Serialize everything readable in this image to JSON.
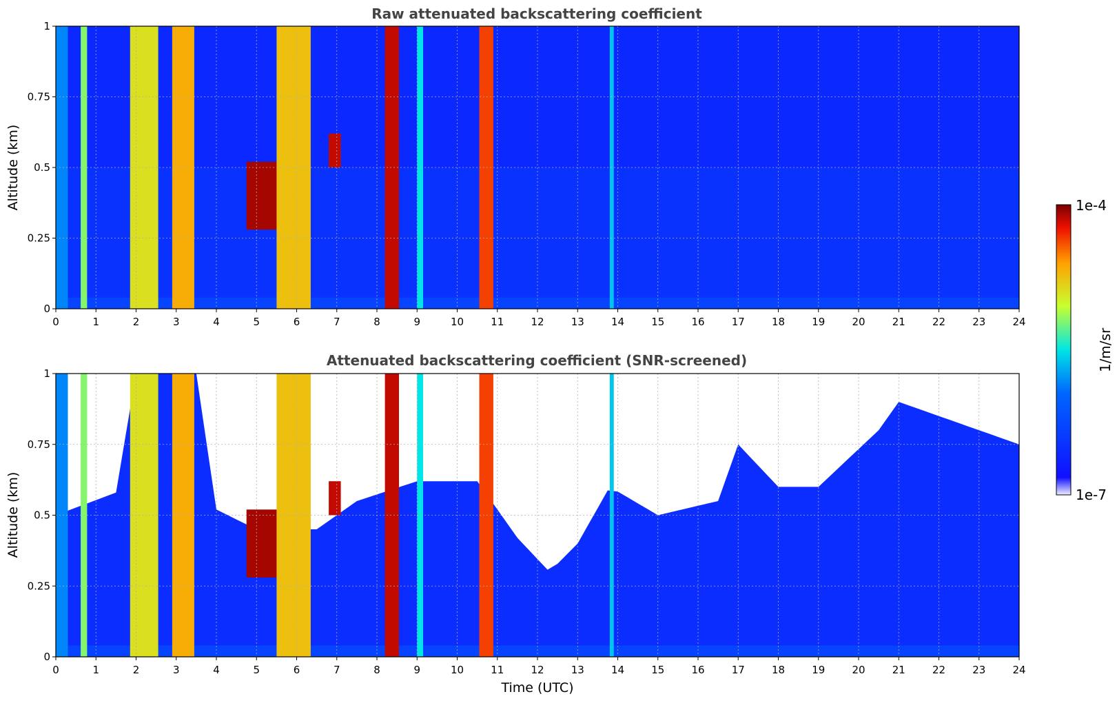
{
  "chart_data": [
    {
      "type": "heatmap",
      "title": "Raw attenuated backscattering coefficient",
      "xlabel": "",
      "ylabel": "Altitude (km)",
      "xlim": [
        0,
        24
      ],
      "ylim": [
        0,
        1
      ],
      "x_ticks": [
        "0",
        "1",
        "2",
        "3",
        "4",
        "5",
        "6",
        "7",
        "8",
        "9",
        "10",
        "11",
        "12",
        "13",
        "14",
        "15",
        "16",
        "17",
        "18",
        "19",
        "20",
        "21",
        "22",
        "23",
        "24"
      ],
      "y_ticks": [
        "0",
        "0.25",
        "0.5",
        "0.75",
        "1"
      ],
      "grid": true,
      "color_scale": "log",
      "features": [
        {
          "x_range": [
            0.0,
            0.3
          ],
          "alt_range": [
            0,
            1
          ],
          "level": 0.35
        },
        {
          "x_range": [
            0.62,
            0.78
          ],
          "alt_range": [
            0,
            1
          ],
          "level": 0.6
        },
        {
          "x_range": [
            1.85,
            2.55
          ],
          "alt_range": [
            0,
            1
          ],
          "level": 0.7
        },
        {
          "x_range": [
            2.9,
            3.45
          ],
          "alt_range": [
            0,
            1
          ],
          "level": 0.78
        },
        {
          "x_range": [
            4.75,
            5.55
          ],
          "alt_range": [
            0.28,
            0.52
          ],
          "level": 0.97
        },
        {
          "x_range": [
            5.5,
            6.35
          ],
          "alt_range": [
            0,
            1
          ],
          "level": 0.75
        },
        {
          "x_range": [
            6.8,
            7.1
          ],
          "alt_range": [
            0.5,
            0.62
          ],
          "level": 0.95
        },
        {
          "x_range": [
            8.2,
            8.55
          ],
          "alt_range": [
            0,
            1
          ],
          "level": 0.95
        },
        {
          "x_range": [
            9.0,
            9.15
          ],
          "alt_range": [
            0,
            1
          ],
          "level": 0.5
        },
        {
          "x_range": [
            10.55,
            10.9
          ],
          "alt_range": [
            0,
            1
          ],
          "level": 0.88
        },
        {
          "x_range": [
            13.8,
            13.9
          ],
          "alt_range": [
            0,
            1
          ],
          "level": 0.45
        }
      ],
      "background_level": 0.12
    },
    {
      "type": "heatmap",
      "title": "Attenuated backscattering coefficient (SNR-screened)",
      "xlabel": "Time (UTC)",
      "ylabel": "Altitude (km)",
      "xlim": [
        0,
        24
      ],
      "ylim": [
        0,
        1
      ],
      "x_ticks": [
        "0",
        "1",
        "2",
        "3",
        "4",
        "5",
        "6",
        "7",
        "8",
        "9",
        "10",
        "11",
        "12",
        "13",
        "14",
        "15",
        "16",
        "17",
        "18",
        "19",
        "20",
        "21",
        "22",
        "23",
        "24"
      ],
      "y_ticks": [
        "0",
        "0.25",
        "0.5",
        "0.75",
        "1"
      ],
      "grid": true,
      "color_scale": "log",
      "screened_top_altitude": [
        [
          0,
          0.5
        ],
        [
          1.5,
          0.58
        ],
        [
          2,
          1
        ],
        [
          3.5,
          1
        ],
        [
          4,
          0.52
        ],
        [
          5,
          0.45
        ],
        [
          6.5,
          0.45
        ],
        [
          7.5,
          0.55
        ],
        [
          9,
          0.62
        ],
        [
          10.5,
          0.62
        ],
        [
          11.5,
          0.42
        ],
        [
          12.3,
          0.3
        ],
        [
          13,
          0.4
        ],
        [
          13.8,
          0.6
        ],
        [
          15,
          0.5
        ],
        [
          16.5,
          0.55
        ],
        [
          17,
          0.75
        ],
        [
          18,
          0.6
        ],
        [
          19,
          0.6
        ],
        [
          20.5,
          0.8
        ],
        [
          21,
          0.9
        ],
        [
          22,
          0.85
        ],
        [
          24,
          0.75
        ]
      ],
      "background_level": 0.1
    }
  ],
  "colorbar": {
    "label": "1/m/sr",
    "max_label": "1e-4",
    "min_label": "1e-7",
    "colormap": "jet"
  }
}
